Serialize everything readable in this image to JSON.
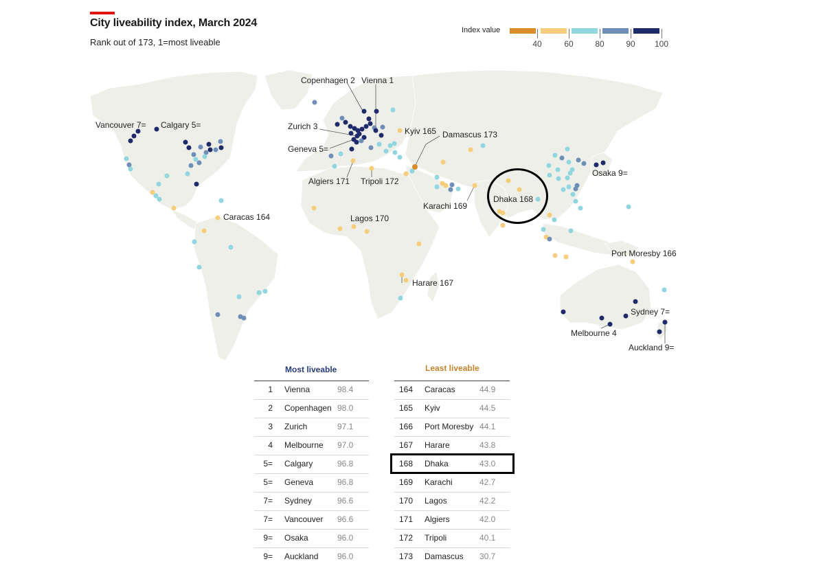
{
  "header": {
    "title": "City liveability index, March 2024",
    "subtitle": "Rank out of 173, 1=most liveable"
  },
  "legend": {
    "title": "Index value",
    "ticks": [
      "40",
      "60",
      "80",
      "90",
      "100"
    ],
    "colors": [
      "#d98d2a",
      "#f6cd7b",
      "#8fd6df",
      "#6f8fb8",
      "#1f2a6b"
    ]
  },
  "colors": {
    "land": "#efefe9",
    "accent": "#e3120b",
    "most_header": "#2a3a7c",
    "least_header": "#c7832c"
  },
  "map_labels": [
    {
      "name": "Copenhagen",
      "rank": "2"
    },
    {
      "name": "Vienna",
      "rank": "1"
    },
    {
      "name": "Vancouver",
      "rank": "7="
    },
    {
      "name": "Calgary",
      "rank": "5="
    },
    {
      "name": "Zurich",
      "rank": "3"
    },
    {
      "name": "Kyiv",
      "rank": "165"
    },
    {
      "name": "Damascus",
      "rank": "173"
    },
    {
      "name": "Geneva",
      "rank": "5="
    },
    {
      "name": "Osaka",
      "rank": "9="
    },
    {
      "name": "Algiers",
      "rank": "171"
    },
    {
      "name": "Tripoli",
      "rank": "172"
    },
    {
      "name": "Dhaka",
      "rank": "168"
    },
    {
      "name": "Karachi",
      "rank": "169"
    },
    {
      "name": "Caracas",
      "rank": "164"
    },
    {
      "name": "Lagos",
      "rank": "170"
    },
    {
      "name": "Port Moresby",
      "rank": "166"
    },
    {
      "name": "Harare",
      "rank": "167"
    },
    {
      "name": "Sydney",
      "rank": "7="
    },
    {
      "name": "Melbourne",
      "rank": "4"
    },
    {
      "name": "Auckland",
      "rank": "9="
    }
  ],
  "tables": {
    "most": {
      "header": "Most liveable",
      "rows": [
        {
          "rank": "1",
          "city": "Vienna",
          "value": "98.4"
        },
        {
          "rank": "2",
          "city": "Copenhagen",
          "value": "98.0"
        },
        {
          "rank": "3",
          "city": "Zurich",
          "value": "97.1"
        },
        {
          "rank": "4",
          "city": "Melbourne",
          "value": "97.0"
        },
        {
          "rank": "5=",
          "city": "Calgary",
          "value": "96.8"
        },
        {
          "rank": "5=",
          "city": "Geneva",
          "value": "96.8"
        },
        {
          "rank": "7=",
          "city": "Sydney",
          "value": "96.6"
        },
        {
          "rank": "7=",
          "city": "Vancouver",
          "value": "96.6"
        },
        {
          "rank": "9=",
          "city": "Osaka",
          "value": "96.0"
        },
        {
          "rank": "9=",
          "city": "Auckland",
          "value": "96.0"
        }
      ]
    },
    "least": {
      "header": "Least liveable",
      "rows": [
        {
          "rank": "164",
          "city": "Caracas",
          "value": "44.9"
        },
        {
          "rank": "165",
          "city": "Kyiv",
          "value": "44.5"
        },
        {
          "rank": "166",
          "city": "Port Moresby",
          "value": "44.1"
        },
        {
          "rank": "167",
          "city": "Harare",
          "value": "43.8"
        },
        {
          "rank": "168",
          "city": "Dhaka",
          "value": "43.0"
        },
        {
          "rank": "169",
          "city": "Karachi",
          "value": "42.7"
        },
        {
          "rank": "170",
          "city": "Lagos",
          "value": "42.2"
        },
        {
          "rank": "171",
          "city": "Algiers",
          "value": "42.0"
        },
        {
          "rank": "172",
          "city": "Tripoli",
          "value": "40.1"
        },
        {
          "rank": "173",
          "city": "Damascus",
          "value": "30.7"
        }
      ]
    }
  }
}
